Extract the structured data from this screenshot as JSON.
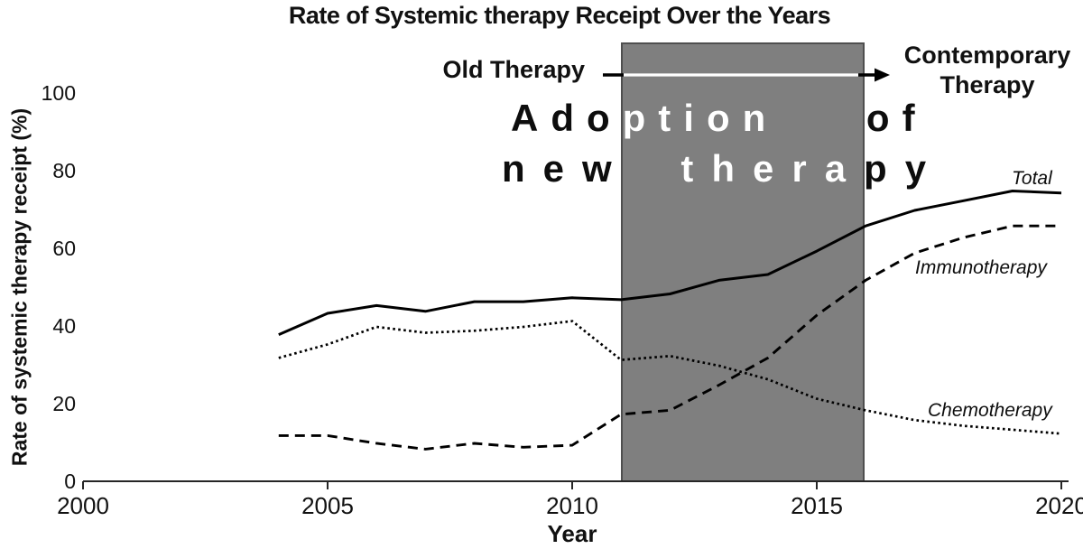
{
  "title": "Rate of Systemic therapy Receipt Over the Years",
  "axes": {
    "y_label": "Rate of systemic therapy receipt (%)",
    "x_label": "Year"
  },
  "annotations": {
    "old_therapy": "Old Therapy",
    "contemporary_line1": "Contemporary",
    "contemporary_line2": "Therapy",
    "adoption_line1": "Adoption of",
    "adoption_line2": "new therapy"
  },
  "series_labels": {
    "total": "Total",
    "immunotherapy": "Immunotherapy",
    "chemotherapy": "Chemotherapy"
  },
  "colors": {
    "shaded_region": "#7f7f7f",
    "shaded_region_border": "#4f4f4f",
    "line_color": "#000000",
    "arrow_highlight": "#ffffff",
    "text": "#111111"
  },
  "chart_data": {
    "type": "line",
    "title": "Rate of Systemic therapy Receipt Over the Years",
    "xlabel": "Year",
    "ylabel": "Rate of systemic therapy receipt (%)",
    "xlim": [
      2000,
      2020
    ],
    "ylim": [
      0,
      100
    ],
    "x_ticks": [
      2000,
      2005,
      2010,
      2015,
      2020
    ],
    "y_ticks": [
      0,
      20,
      40,
      60,
      80,
      100
    ],
    "grid": false,
    "legend_position": "inline-end-of-line-labels",
    "shaded_region": {
      "x_start": 2011,
      "x_end": 2016,
      "label": "Adoption of new therapy",
      "arrow_from_label": "Old Therapy",
      "arrow_to_label": "Contemporary Therapy"
    },
    "x": [
      2004,
      2005,
      2006,
      2007,
      2008,
      2009,
      2010,
      2011,
      2012,
      2013,
      2014,
      2015,
      2016,
      2017,
      2018,
      2019,
      2020
    ],
    "series": [
      {
        "name": "Total",
        "style": "solid",
        "values": [
          38,
          43.5,
          45.5,
          44,
          46.5,
          46.5,
          47.5,
          47,
          48.5,
          52,
          53.5,
          59.5,
          66,
          70,
          72.5,
          75,
          74.5
        ]
      },
      {
        "name": "Immunotherapy",
        "style": "dashed",
        "values": [
          12,
          12,
          10,
          8.5,
          10,
          9,
          9.5,
          17.5,
          18.5,
          25,
          32,
          43,
          52,
          59,
          63,
          66,
          66
        ]
      },
      {
        "name": "Chemotherapy",
        "style": "dotted",
        "values": [
          32,
          35.5,
          40,
          38.5,
          39,
          40,
          41.5,
          31.5,
          32.5,
          30,
          26.5,
          21.5,
          18.5,
          16,
          14.5,
          13.5,
          12.5
        ]
      }
    ]
  }
}
